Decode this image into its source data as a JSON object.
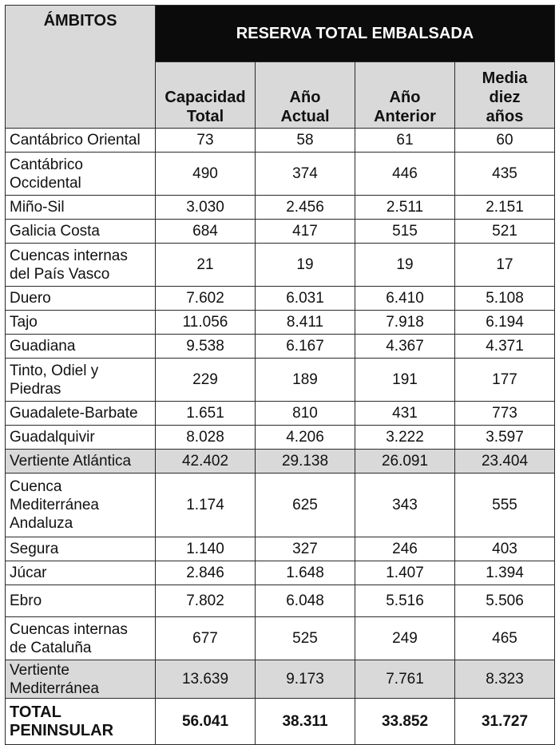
{
  "header": {
    "reserva_title": "RESERVA TOTAL EMBALSADA",
    "ambitos": "ÁMBITOS",
    "columns": [
      [
        "Capacidad",
        "Total"
      ],
      [
        "Año",
        "Actual"
      ],
      [
        "Año",
        "Anterior"
      ],
      [
        "Media",
        "diez",
        "años"
      ]
    ]
  },
  "rows": [
    {
      "name": [
        "Cantábrico Oriental"
      ],
      "values": [
        "73",
        "58",
        "61",
        "60"
      ],
      "h": 30
    },
    {
      "name": [
        "Cantábrico",
        "Occidental"
      ],
      "values": [
        "490",
        "374",
        "446",
        "435"
      ],
      "h": 54
    },
    {
      "name": [
        "Miño-Sil"
      ],
      "values": [
        "3.030",
        "2.456",
        "2.511",
        "2.151"
      ],
      "h": 30
    },
    {
      "name": [
        "Galicia Costa"
      ],
      "values": [
        "684",
        "417",
        "515",
        "521"
      ],
      "h": 30
    },
    {
      "name": [
        "Cuencas internas",
        "del País Vasco"
      ],
      "values": [
        "21",
        "19",
        "19",
        "17"
      ],
      "h": 54
    },
    {
      "name": [
        "Duero"
      ],
      "values": [
        "7.602",
        "6.031",
        "6.410",
        "5.108"
      ],
      "h": 30
    },
    {
      "name": [
        "Tajo"
      ],
      "values": [
        "11.056",
        "8.411",
        "7.918",
        "6.194"
      ],
      "h": 30
    },
    {
      "name": [
        "Guadiana"
      ],
      "values": [
        "9.538",
        "6.167",
        "4.367",
        "4.371"
      ],
      "h": 30
    },
    {
      "name": [
        "Tinto, Odiel y",
        "Piedras"
      ],
      "values": [
        "229",
        "189",
        "191",
        "177"
      ],
      "h": 54
    },
    {
      "name": [
        "Guadalete-Barbate"
      ],
      "values": [
        "1.651",
        "810",
        "431",
        "773"
      ],
      "h": 30
    },
    {
      "name": [
        "Guadalquivir"
      ],
      "values": [
        "8.028",
        "4.206",
        "3.222",
        "3.597"
      ],
      "h": 30
    },
    {
      "name": [
        "Vertiente Atlántica"
      ],
      "values": [
        "42.402",
        "29.138",
        "26.091",
        "23.404"
      ],
      "h": 30,
      "highlight": true
    },
    {
      "name": [
        "Cuenca",
        "Mediterránea",
        "Andaluza"
      ],
      "values": [
        "1.174",
        "625",
        "343",
        "555"
      ],
      "h": 80
    },
    {
      "name": [
        "Segura"
      ],
      "values": [
        "1.140",
        "327",
        "246",
        "403"
      ],
      "h": 30
    },
    {
      "name": [
        "Júcar"
      ],
      "values": [
        "2.846",
        "1.648",
        "1.407",
        "1.394"
      ],
      "h": 30
    },
    {
      "name": [
        "Ebro"
      ],
      "values": [
        "7.802",
        "6.048",
        "5.516",
        "5.506"
      ],
      "h": 40
    },
    {
      "name": [
        "Cuencas internas",
        "de Cataluña"
      ],
      "values": [
        "677",
        "525",
        "249",
        "465"
      ],
      "h": 54
    },
    {
      "name": [
        "Vertiente",
        "Mediterránea"
      ],
      "values": [
        "13.639",
        "9.173",
        "7.761",
        "8.323"
      ],
      "h": 48,
      "highlight": true
    },
    {
      "name": [
        "TOTAL",
        "PENINSULAR"
      ],
      "values": [
        "56.041",
        "38.311",
        "33.852",
        "31.727"
      ],
      "h": 58,
      "total": true
    }
  ]
}
